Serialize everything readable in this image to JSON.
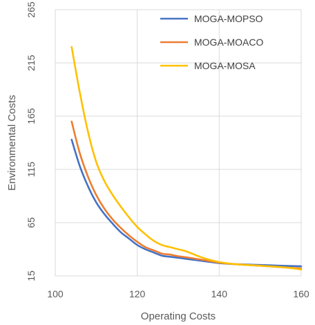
{
  "chart_data": {
    "type": "line",
    "title": "",
    "xlabel": "Operating Costs",
    "ylabel": "Environmental Costs",
    "xlim": [
      100,
      160
    ],
    "ylim": [
      15,
      265
    ],
    "xticks": [
      100,
      120,
      140,
      160
    ],
    "yticks": [
      15,
      65,
      115,
      165,
      215,
      265
    ],
    "grid": true,
    "legend_position": "top-right",
    "series": [
      {
        "name": "MOGA-MOPSO",
        "color": "#4472C4",
        "x": [
          104,
          106,
          108,
          110,
          112,
          114,
          116,
          118,
          120,
          122,
          124,
          126,
          128,
          130,
          132,
          136,
          140,
          144,
          148,
          152,
          156,
          160
        ],
        "y": [
          143,
          118,
          99,
          84,
          73,
          64,
          56,
          50,
          44,
          40,
          37,
          34,
          33,
          32,
          31,
          29,
          27,
          26,
          25.5,
          25,
          24.5,
          24
        ]
      },
      {
        "name": "MOGA-MOACO",
        "color": "#ED7D31",
        "x": [
          104,
          106,
          108,
          110,
          112,
          114,
          116,
          118,
          120,
          122,
          124,
          126,
          128,
          130,
          132,
          136,
          140,
          144,
          148,
          152,
          156,
          160
        ],
        "y": [
          160,
          130,
          108,
          91,
          78,
          68,
          60,
          53,
          47,
          42,
          39,
          36,
          35,
          33.5,
          32.5,
          30,
          27.5,
          26,
          25,
          24,
          23,
          22
        ]
      },
      {
        "name": "MOGA-MOSA",
        "color": "#FFC000",
        "x": [
          104,
          106,
          108,
          110,
          112,
          114,
          116,
          118,
          120,
          122,
          124,
          126,
          128,
          130,
          132,
          136,
          140,
          144,
          148,
          152,
          156,
          160
        ],
        "y": [
          230,
          187,
          150,
          122,
          104,
          91,
          80,
          70,
          61,
          54,
          48,
          44,
          42,
          40,
          38,
          32,
          28,
          26,
          25,
          24,
          23,
          21
        ]
      }
    ]
  }
}
